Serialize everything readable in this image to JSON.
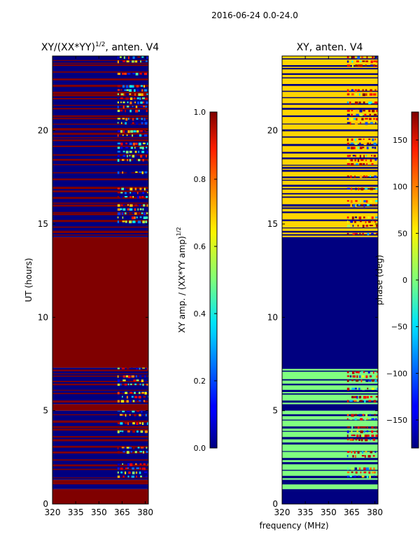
{
  "suptitle": "2016-06-24 0.0-24.0",
  "chart_data": [
    {
      "type": "heatmap",
      "title": "XY/(XX*YY)",
      "title_exponent": "1/2",
      "title_suffix": ", anten. V4",
      "xlabel": "",
      "ylabel": "UT (hours)",
      "xlim": [
        320,
        382
      ],
      "ylim": [
        0,
        24
      ],
      "xticks": [
        320,
        335,
        350,
        365,
        380
      ],
      "yticks": [
        0,
        5,
        10,
        15,
        20
      ],
      "colormap": "jet",
      "colorbar": {
        "label": "XY amp. / (XX*YY amp)",
        "label_exponent": "1/2",
        "range": [
          0.0,
          1.0
        ],
        "ticks": [
          "0.0",
          "0.2",
          "0.4",
          "0.6",
          "0.8",
          "1.0"
        ]
      },
      "bands": [
        {
          "t0": 0.0,
          "t1": 0.8,
          "value": 1.0
        },
        {
          "t0": 0.8,
          "t1": 1.05,
          "value": 0.0
        },
        {
          "t0": 1.05,
          "t1": 1.3,
          "value": 1.0
        },
        {
          "t0": 1.3,
          "t1": 5.0,
          "value": 0.0,
          "striped": true
        },
        {
          "t0": 5.0,
          "t1": 5.35,
          "value": 1.0
        },
        {
          "t0": 5.35,
          "t1": 7.3,
          "value": 0.0,
          "striped": true
        },
        {
          "t0": 7.3,
          "t1": 14.3,
          "value": 1.0
        },
        {
          "t0": 14.3,
          "t1": 24.0,
          "value": 0.0,
          "striped": true
        }
      ],
      "stripe_value": 1.0,
      "active_band_mhz": [
        362,
        382
      ]
    },
    {
      "type": "heatmap",
      "title": "XY, anten. V4",
      "xlabel": "frequency (MHz)",
      "ylabel": "",
      "xlim": [
        320,
        382
      ],
      "ylim": [
        0,
        24
      ],
      "xticks": [
        320,
        335,
        350,
        365,
        380
      ],
      "yticks": [
        0,
        5,
        10,
        15,
        20
      ],
      "colormap": "jet",
      "colorbar": {
        "label": "phase (deg)",
        "range": [
          -180,
          180
        ],
        "ticks": [
          "-150",
          "-100",
          "-50",
          "0",
          "50",
          "100",
          "150"
        ]
      },
      "bands": [
        {
          "t0": 0.0,
          "t1": 0.8,
          "value": -180
        },
        {
          "t0": 0.8,
          "t1": 1.05,
          "value": 0
        },
        {
          "t0": 1.05,
          "t1": 1.3,
          "value": -180
        },
        {
          "t0": 1.3,
          "t1": 5.0,
          "value": 0,
          "striped": true
        },
        {
          "t0": 5.0,
          "t1": 5.35,
          "value": -180
        },
        {
          "t0": 5.35,
          "t1": 7.3,
          "value": 0,
          "striped": true
        },
        {
          "t0": 7.3,
          "t1": 14.3,
          "value": -180
        },
        {
          "t0": 14.3,
          "t1": 24.0,
          "value": 60,
          "striped": true
        }
      ],
      "stripe_value": -180,
      "active_band_mhz": [
        362,
        382
      ]
    }
  ]
}
